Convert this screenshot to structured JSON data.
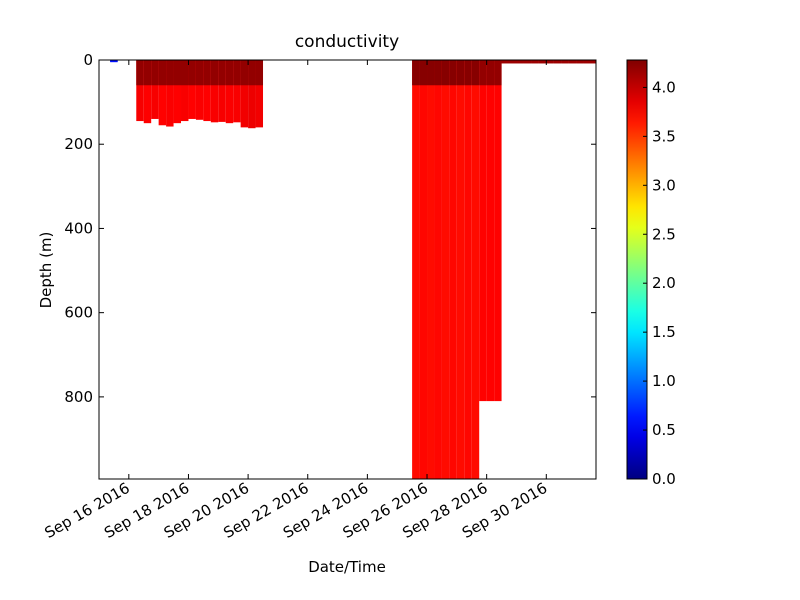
{
  "chart_data": {
    "type": "profile",
    "title": "conductivity",
    "xlabel": "Date/Time",
    "ylabel": "Depth (m)",
    "x": [
      "2016-09-15T09:00",
      "2016-09-16T06:00",
      "2016-09-16T12:00",
      "2016-09-16T18:00",
      "2016-09-17T00:00",
      "2016-09-17T06:00",
      "2016-09-17T12:00",
      "2016-09-17T18:00",
      "2016-09-18T00:00",
      "2016-09-18T06:00",
      "2016-09-18T12:00",
      "2016-09-18T18:00",
      "2016-09-19T00:00",
      "2016-09-19T06:00",
      "2016-09-19T12:00",
      "2016-09-19T18:00",
      "2016-09-20T00:00",
      "2016-09-20T06:00",
      "2016-09-25T12:00",
      "2016-09-25T18:00",
      "2016-09-26T00:00",
      "2016-09-26T06:00",
      "2016-09-26T12:00",
      "2016-09-26T18:00",
      "2016-09-27T00:00",
      "2016-09-27T06:00",
      "2016-09-27T12:00",
      "2016-09-27T18:00",
      "2016-09-28T00:00",
      "2016-09-28T06:00",
      "2016-09-28T12:00",
      "2016-09-28T18:00",
      "2016-09-29T00:00",
      "2016-09-29T06:00",
      "2016-09-29T12:00",
      "2016-09-29T18:00",
      "2016-09-30T00:00",
      "2016-09-30T06:00",
      "2016-09-30T12:00",
      "2016-09-30T18:00",
      "2016-10-01T00:00",
      "2016-10-01T06:00",
      "2016-10-01T12:00"
    ],
    "max_depth": [
      5,
      145,
      150,
      140,
      155,
      158,
      150,
      145,
      140,
      142,
      145,
      148,
      147,
      150,
      148,
      160,
      162,
      160,
      1000,
      1000,
      1000,
      1000,
      1000,
      1000,
      1000,
      1000,
      1000,
      810,
      810,
      810,
      8,
      8,
      8,
      8,
      8,
      8,
      8,
      8,
      8,
      8,
      8,
      8,
      8
    ],
    "surface_values": [
      0.6,
      4.2,
      4.2,
      4.2,
      4.2,
      4.2,
      4.2,
      4.2,
      4.2,
      4.2,
      4.2,
      4.2,
      4.2,
      4.2,
      4.2,
      4.2,
      4.2,
      4.2,
      4.25,
      4.25,
      4.25,
      4.25,
      4.25,
      4.25,
      4.25,
      4.25,
      4.25,
      4.2,
      4.2,
      4.2,
      4.15,
      4.15,
      4.15,
      4.15,
      4.15,
      4.15,
      4.15,
      4.15,
      4.15,
      4.15,
      4.15,
      4.15,
      4.15
    ],
    "values": [
      0.6,
      3.78,
      3.75,
      3.78,
      3.74,
      3.76,
      3.75,
      3.77,
      3.74,
      3.76,
      3.75,
      3.77,
      3.78,
      3.76,
      3.77,
      3.8,
      3.82,
      3.8,
      3.7,
      3.72,
      3.7,
      3.72,
      3.7,
      3.72,
      3.7,
      3.72,
      3.7,
      3.74,
      3.74,
      3.74,
      4.15,
      4.15,
      4.15,
      4.15,
      4.15,
      4.15,
      4.15,
      4.15,
      4.15,
      4.15,
      4.15,
      4.15,
      4.15
    ],
    "xlim": [
      "2016-09-15T00:00",
      "2016-10-01T16:00"
    ],
    "xticks": [
      {
        "value": "2016-09-16T00:00",
        "label": "Sep 16 2016"
      },
      {
        "value": "2016-09-18T00:00",
        "label": "Sep 18 2016"
      },
      {
        "value": "2016-09-20T00:00",
        "label": "Sep 20 2016"
      },
      {
        "value": "2016-09-22T00:00",
        "label": "Sep 22 2016"
      },
      {
        "value": "2016-09-24T00:00",
        "label": "Sep 24 2016"
      },
      {
        "value": "2016-09-26T00:00",
        "label": "Sep 26 2016"
      },
      {
        "value": "2016-09-28T00:00",
        "label": "Sep 28 2016"
      },
      {
        "value": "2016-09-30T00:00",
        "label": "Sep 30 2016"
      }
    ],
    "ylim": [
      995,
      0
    ],
    "yticks": [
      0,
      200,
      400,
      600,
      800
    ],
    "colormap": "jet",
    "clim": [
      0,
      4.28
    ],
    "cticks": [
      {
        "value": 0,
        "label": "0.0"
      },
      {
        "value": 0.5,
        "label": "0.5"
      },
      {
        "value": 1,
        "label": "1.0"
      },
      {
        "value": 1.5,
        "label": "1.5"
      },
      {
        "value": 2,
        "label": "2.0"
      },
      {
        "value": 2.5,
        "label": "2.5"
      },
      {
        "value": 3,
        "label": "3.0"
      },
      {
        "value": 3.5,
        "label": "3.5"
      },
      {
        "value": 4,
        "label": "4.0"
      }
    ]
  }
}
